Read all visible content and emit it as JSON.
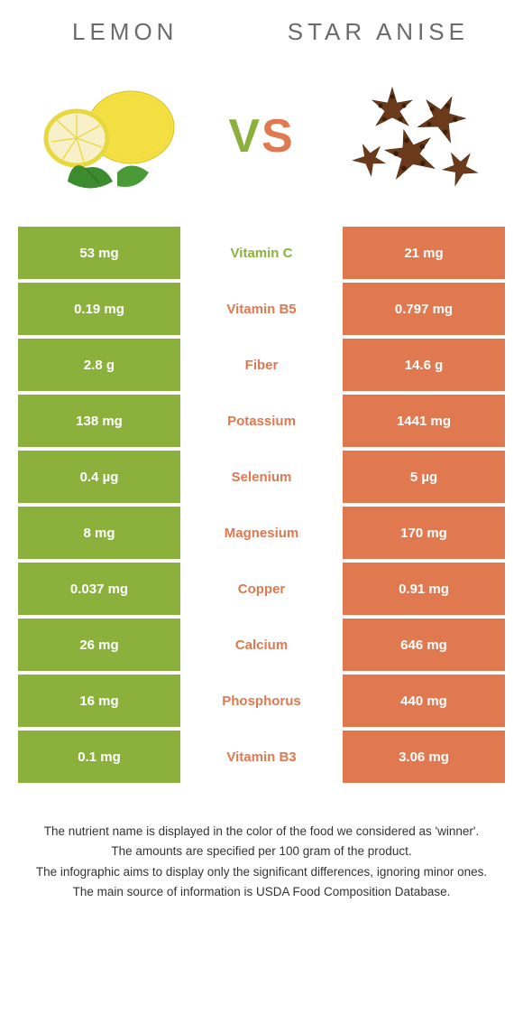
{
  "titles": {
    "left": "Lemon",
    "right": "Star anise"
  },
  "vs": {
    "v": "V",
    "s": "S"
  },
  "colors": {
    "left_bg": "#8bb13c",
    "right_bg": "#e07850",
    "left_text": "#8bb13c",
    "right_text": "#e07850",
    "title_text": "#6b6b6b",
    "footer_text": "#333333",
    "cell_text": "#ffffff"
  },
  "rows": [
    {
      "left": "53 mg",
      "mid": "Vitamin C",
      "right": "21 mg",
      "winner": "left"
    },
    {
      "left": "0.19 mg",
      "mid": "Vitamin B5",
      "right": "0.797 mg",
      "winner": "right"
    },
    {
      "left": "2.8 g",
      "mid": "Fiber",
      "right": "14.6 g",
      "winner": "right"
    },
    {
      "left": "138 mg",
      "mid": "Potassium",
      "right": "1441 mg",
      "winner": "right"
    },
    {
      "left": "0.4 µg",
      "mid": "Selenium",
      "right": "5 µg",
      "winner": "right"
    },
    {
      "left": "8 mg",
      "mid": "Magnesium",
      "right": "170 mg",
      "winner": "right"
    },
    {
      "left": "0.037 mg",
      "mid": "Copper",
      "right": "0.91 mg",
      "winner": "right"
    },
    {
      "left": "26 mg",
      "mid": "Calcium",
      "right": "646 mg",
      "winner": "right"
    },
    {
      "left": "16 mg",
      "mid": "Phosphorus",
      "right": "440 mg",
      "winner": "right"
    },
    {
      "left": "0.1 mg",
      "mid": "Vitamin B3",
      "right": "3.06 mg",
      "winner": "right"
    }
  ],
  "footer": [
    "The nutrient name is displayed in the color of the food we considered as 'winner'.",
    "The amounts are specified per 100 gram of the product.",
    "The infographic aims to display only the significant differences, ignoring minor ones.",
    "The main source of information is USDA Food Composition Database."
  ]
}
